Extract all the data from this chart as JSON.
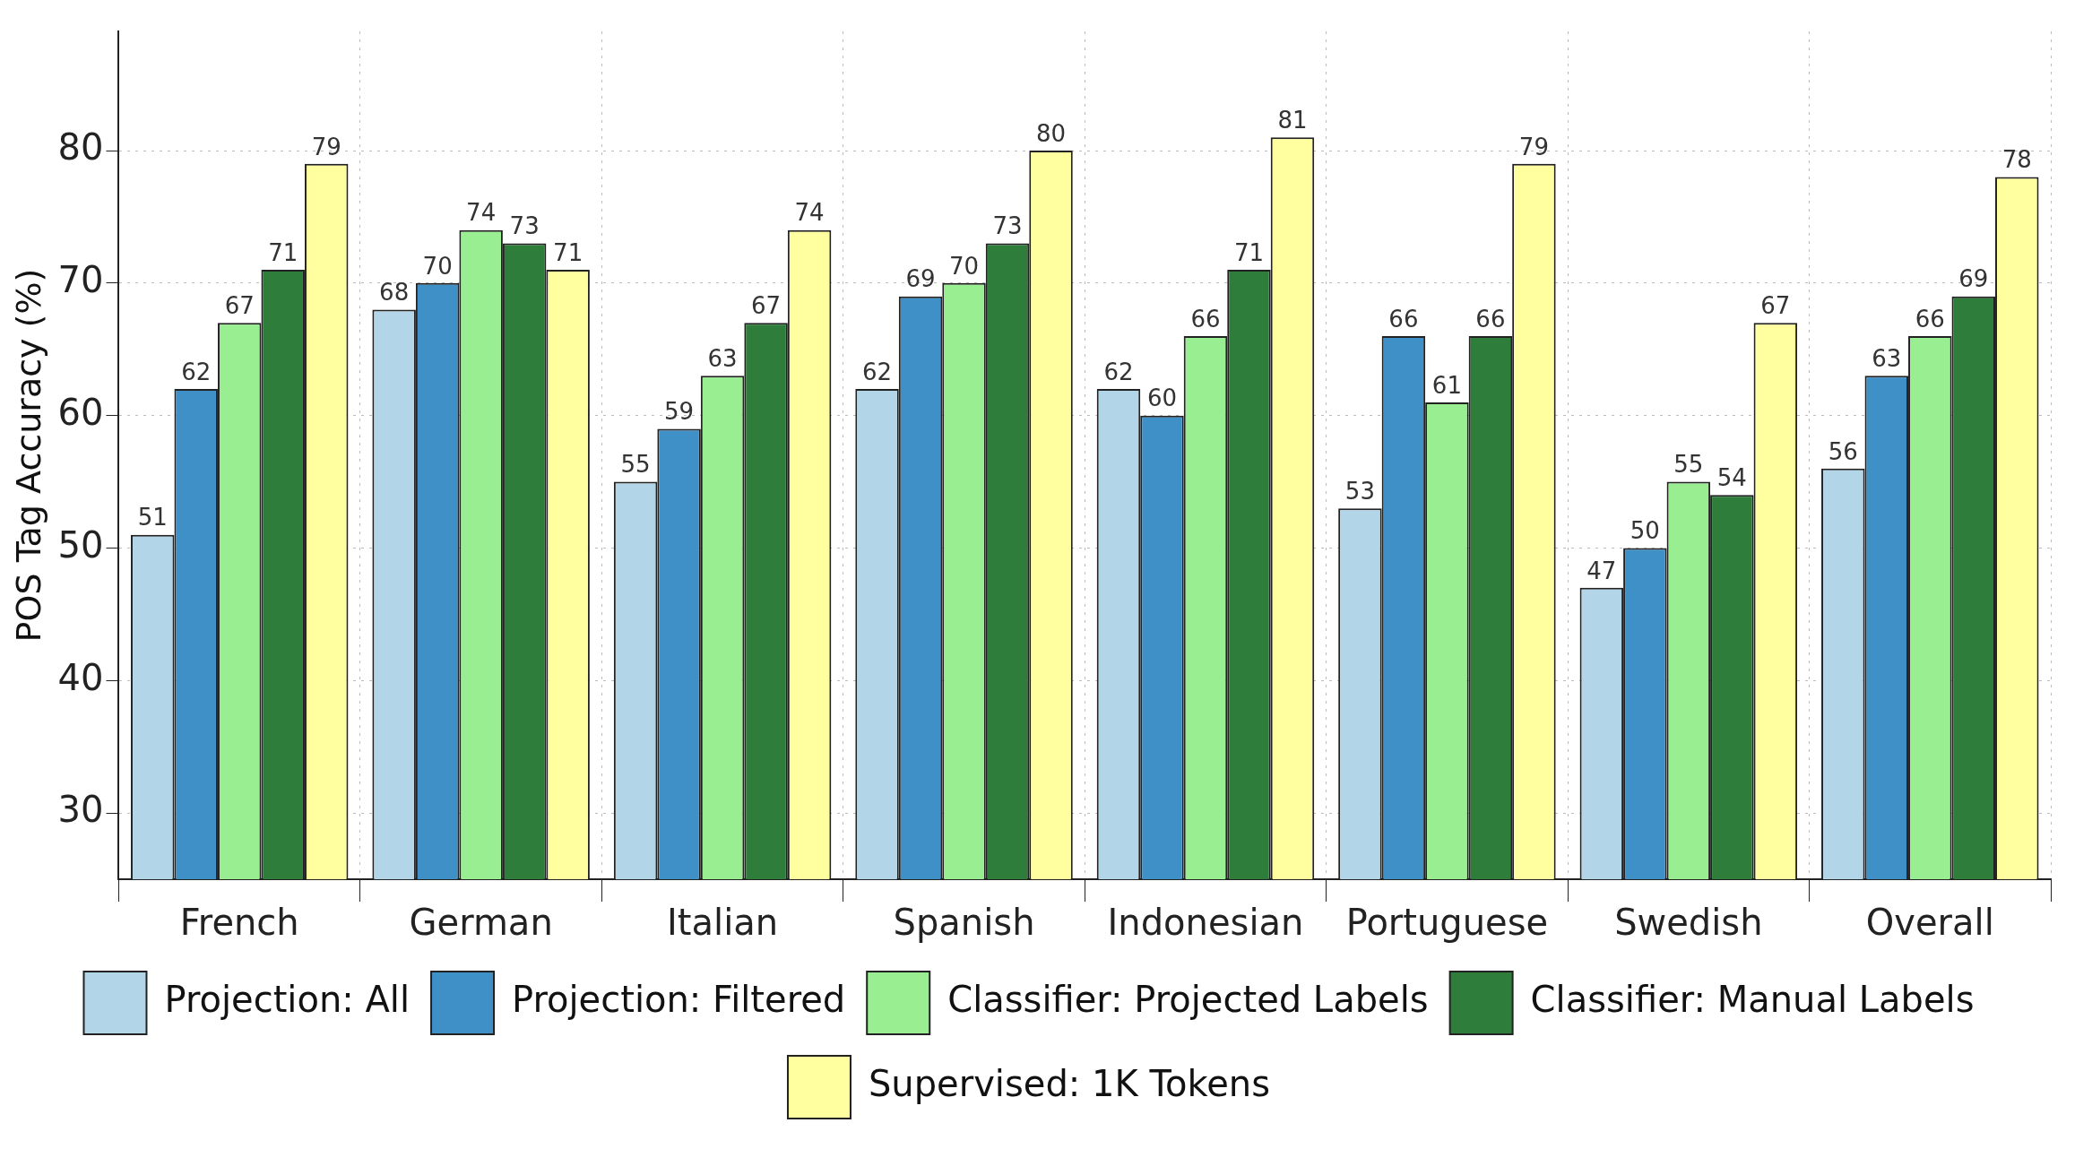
{
  "chart_data": {
    "type": "bar",
    "ylabel": "POS Tag Accuracy (%)",
    "categories": [
      "French",
      "German",
      "Italian",
      "Spanish",
      "Indonesian",
      "Portuguese",
      "Swedish",
      "Overall"
    ],
    "series": [
      {
        "name": "Projection: All",
        "color": "#b3d5e8",
        "values": [
          51,
          68,
          55,
          62,
          62,
          53,
          47,
          56
        ]
      },
      {
        "name": "Projection: Filtered",
        "color": "#4090c8",
        "values": [
          62,
          70,
          59,
          69,
          60,
          66,
          50,
          63
        ]
      },
      {
        "name": "Classifier: Projected Labels",
        "color": "#98ee90",
        "values": [
          67,
          74,
          63,
          70,
          66,
          61,
          55,
          66
        ]
      },
      {
        "name": "Classifier: Manual Labels",
        "color": "#2e7d3a",
        "values": [
          71,
          73,
          67,
          73,
          71,
          66,
          54,
          69
        ]
      },
      {
        "name": "Supervised: 1K Tokens",
        "color": "#ffffa0",
        "values": [
          79,
          71,
          74,
          80,
          81,
          79,
          67,
          78
        ]
      }
    ],
    "ylim": [
      25,
      89
    ],
    "yticks": [
      30,
      40,
      50,
      60,
      70,
      80
    ],
    "grid": true,
    "legend": "bottom",
    "data_labels": true
  }
}
